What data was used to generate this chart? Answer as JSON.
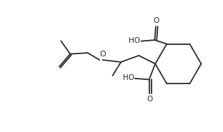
{
  "bg_color": "#ffffff",
  "line_color": "#2b2b2b",
  "text_color": "#2b2b2b",
  "figsize": [
    3.12,
    1.85
  ],
  "dpi": 100,
  "xlim": [
    0,
    10
  ],
  "ylim": [
    0,
    6
  ]
}
